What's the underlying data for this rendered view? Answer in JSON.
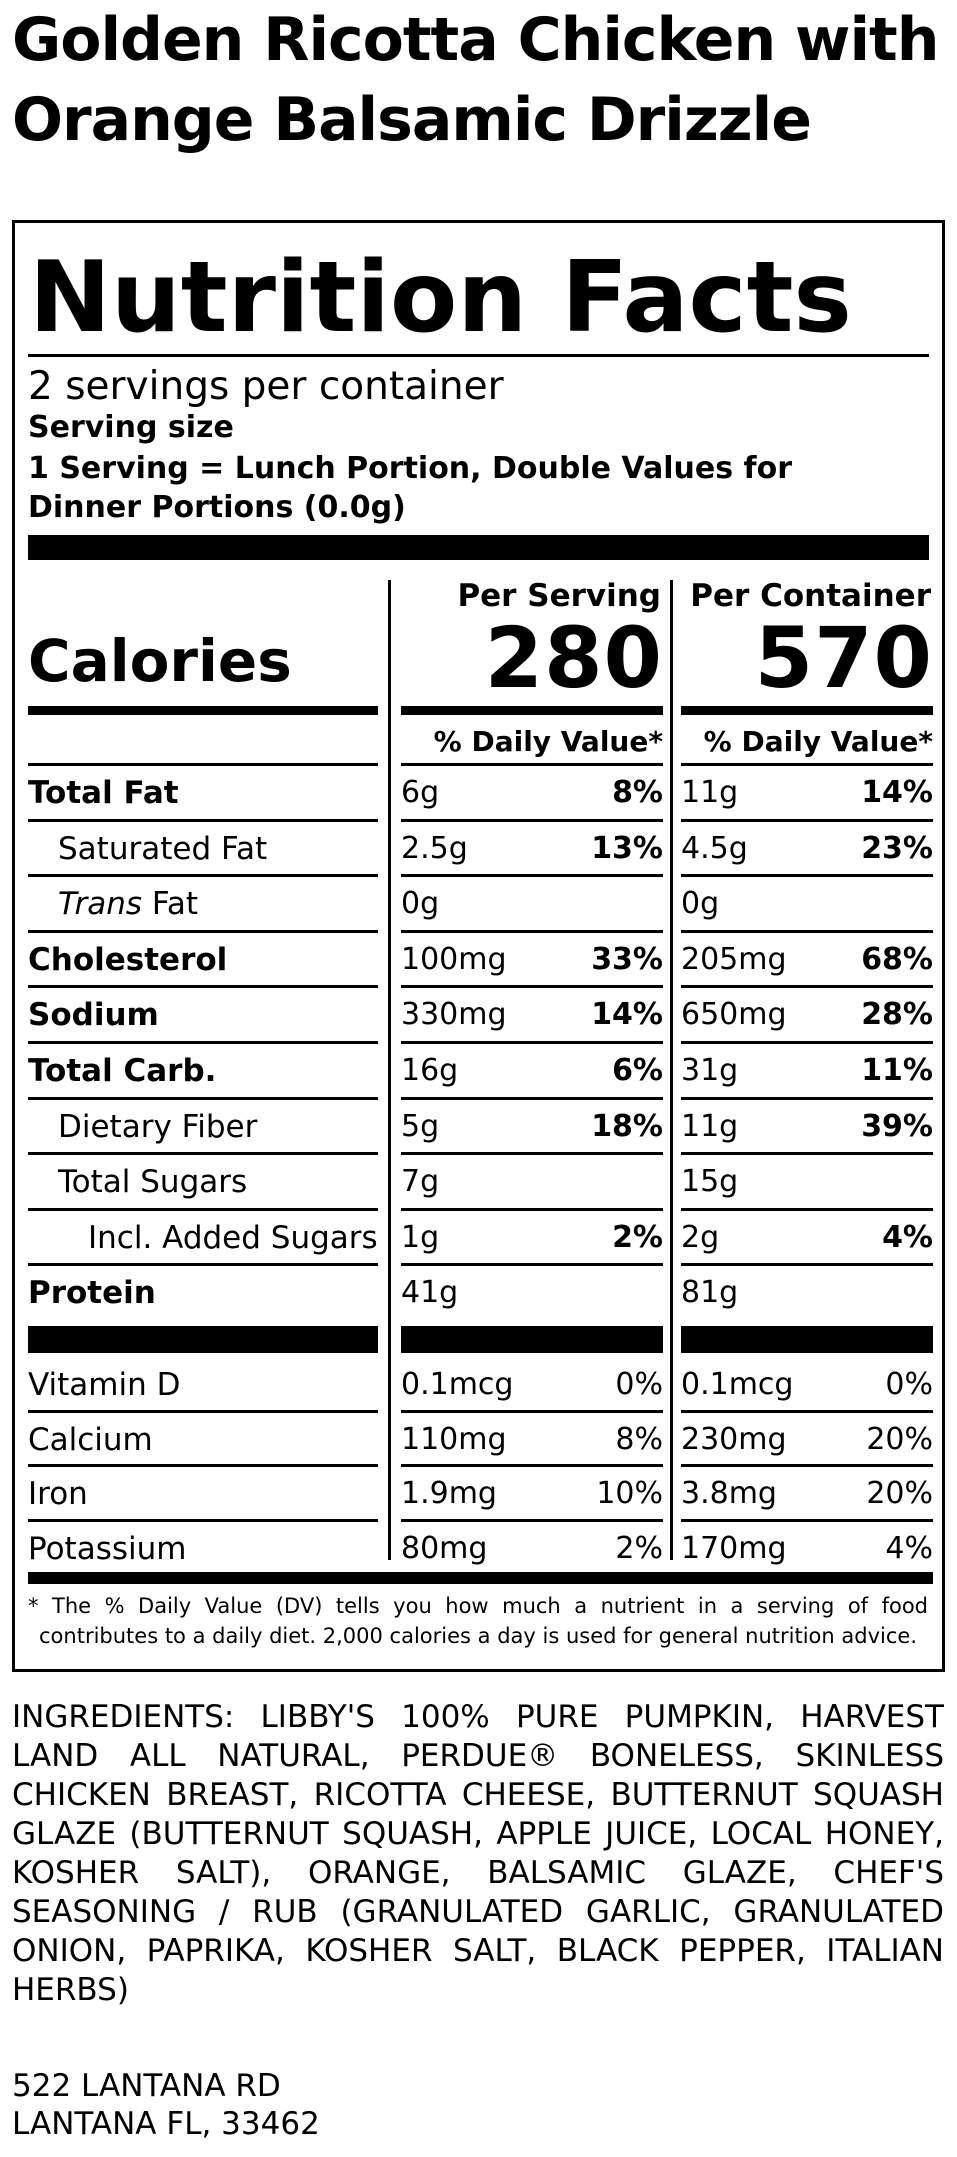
{
  "product": {
    "title_line1": "Golden Ricotta Chicken with",
    "title_line2": "Orange Balsamic Drizzle"
  },
  "label": {
    "heading": "Nutrition Facts",
    "servings_per_container": "2 servings per container",
    "serving_size_label": "Serving size",
    "serving_size_value": "1 Serving = Lunch Portion, Double Values for Dinner Portions (0.0g)",
    "columns": {
      "per_serving": "Per Serving",
      "per_container": "Per Container",
      "daily_value_header": "% Daily Value*"
    },
    "calories": {
      "label": "Calories",
      "per_serving": "280",
      "per_container": "570"
    },
    "nutrients": [
      {
        "name": "Total Fat",
        "bold": true,
        "indent": 0,
        "serving_amount": "6g",
        "serving_dv": "8%",
        "container_amount": "11g",
        "container_dv": "14%"
      },
      {
        "name": "Saturated Fat",
        "bold": false,
        "indent": 1,
        "serving_amount": "2.5g",
        "serving_dv": "13%",
        "container_amount": "4.5g",
        "container_dv": "23%"
      },
      {
        "name_italic": "Trans",
        "name_rest": " Fat",
        "bold": false,
        "indent": 1,
        "serving_amount": "0g",
        "serving_dv": "",
        "container_amount": "0g",
        "container_dv": ""
      },
      {
        "name": "Cholesterol",
        "bold": true,
        "indent": 0,
        "serving_amount": "100mg",
        "serving_dv": "33%",
        "container_amount": "205mg",
        "container_dv": "68%"
      },
      {
        "name": "Sodium",
        "bold": true,
        "indent": 0,
        "serving_amount": "330mg",
        "serving_dv": "14%",
        "container_amount": "650mg",
        "container_dv": "28%"
      },
      {
        "name": "Total Carb.",
        "bold": true,
        "indent": 0,
        "serving_amount": "16g",
        "serving_dv": "6%",
        "container_amount": "31g",
        "container_dv": "11%"
      },
      {
        "name": "Dietary Fiber",
        "bold": false,
        "indent": 1,
        "serving_amount": "5g",
        "serving_dv": "18%",
        "container_amount": "11g",
        "container_dv": "39%"
      },
      {
        "name": "Total Sugars",
        "bold": false,
        "indent": 1,
        "serving_amount": "7g",
        "serving_dv": "",
        "container_amount": "15g",
        "container_dv": ""
      },
      {
        "name": "Incl. Added Sugars",
        "bold": false,
        "indent": 2,
        "serving_amount": "1g",
        "serving_dv": "2%",
        "container_amount": "2g",
        "container_dv": "4%"
      },
      {
        "name": "Protein",
        "bold": true,
        "indent": 0,
        "serving_amount": "41g",
        "serving_dv": "",
        "container_amount": "81g",
        "container_dv": ""
      }
    ],
    "micronutrients": [
      {
        "name": "Vitamin D",
        "serving_amount": "0.1mcg",
        "serving_dv": "0%",
        "container_amount": "0.1mcg",
        "container_dv": "0%"
      },
      {
        "name": "Calcium",
        "serving_amount": "110mg",
        "serving_dv": "8%",
        "container_amount": "230mg",
        "container_dv": "20%"
      },
      {
        "name": "Iron",
        "serving_amount": "1.9mg",
        "serving_dv": "10%",
        "container_amount": "3.8mg",
        "container_dv": "20%"
      },
      {
        "name": "Potassium",
        "serving_amount": "80mg",
        "serving_dv": "2%",
        "container_amount": "170mg",
        "container_dv": "4%"
      }
    ],
    "footnote": "* The % Daily Value (DV) tells you how much a nutrient in a serving of food contributes to a daily diet. 2,000 calories a day is used for general nutrition advice."
  },
  "ingredients": "INGREDIENTS: LIBBY'S 100% PURE PUMPKIN, HARVEST LAND ALL NATURAL, PERDUE® BONELESS, SKINLESS CHICKEN BREAST, RICOTTA CHEESE, BUTTERNUT SQUASH GLAZE (BUTTERNUT SQUASH, APPLE JUICE, LOCAL HONEY, KOSHER SALT), ORANGE, BALSAMIC GLAZE, CHEF'S SEASONING / RUB (GRANULATED GARLIC, GRANULATED ONION, PAPRIKA, KOSHER SALT, BLACK PEPPER, ITALIAN HERBS)",
  "address": {
    "line1": "522 LANTANA RD",
    "line2": "LANTANA FL, 33462"
  }
}
